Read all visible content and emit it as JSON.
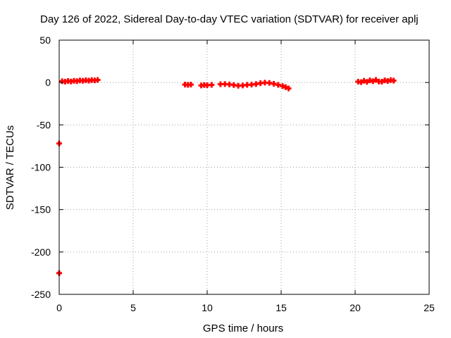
{
  "chart_data": {
    "type": "scatter",
    "title": "Day 126 of 2022, Sidereal Day-to-day VTEC variation (SDTVAR) for receiver aplj",
    "xlabel": "GPS time / hours",
    "ylabel": "SDTVAR / TECUs",
    "xlim": [
      0,
      25
    ],
    "ylim": [
      -250,
      50
    ],
    "xticks": [
      0,
      5,
      10,
      15,
      20,
      25
    ],
    "yticks": [
      50,
      0,
      -50,
      -100,
      -150,
      -200,
      -250
    ],
    "grid": true,
    "marker": "plus",
    "series": [
      {
        "color": "#ff0000",
        "points": [
          [
            0.2,
            1.5
          ],
          [
            0.4,
            1.0
          ],
          [
            0.6,
            1.8
          ],
          [
            0.8,
            1.2
          ],
          [
            1.0,
            2.0
          ],
          [
            1.2,
            1.6
          ],
          [
            1.4,
            2.4
          ],
          [
            1.6,
            2.0
          ],
          [
            1.8,
            2.6
          ],
          [
            2.0,
            2.2
          ],
          [
            2.2,
            2.8
          ],
          [
            2.4,
            2.5
          ],
          [
            2.6,
            3.0
          ],
          [
            8.5,
            -2.5
          ],
          [
            8.7,
            -2.8
          ],
          [
            8.9,
            -2.5
          ],
          [
            9.6,
            -3.5
          ],
          [
            9.8,
            -3.0
          ],
          [
            10.0,
            -3.2
          ],
          [
            10.3,
            -2.8
          ],
          [
            10.9,
            -2.0
          ],
          [
            11.2,
            -1.8
          ],
          [
            11.5,
            -2.2
          ],
          [
            11.8,
            -3.0
          ],
          [
            12.1,
            -3.8
          ],
          [
            12.4,
            -3.5
          ],
          [
            12.7,
            -2.8
          ],
          [
            13.0,
            -2.5
          ],
          [
            13.3,
            -1.8
          ],
          [
            13.6,
            -0.8
          ],
          [
            13.9,
            -0.2
          ],
          [
            14.2,
            -0.5
          ],
          [
            14.5,
            -1.5
          ],
          [
            14.8,
            -2.8
          ],
          [
            15.1,
            -4.2
          ],
          [
            15.3,
            -5.5
          ],
          [
            15.5,
            -7.0
          ],
          [
            20.2,
            1.0
          ],
          [
            20.4,
            0.5
          ],
          [
            20.6,
            2.0
          ],
          [
            20.8,
            0.8
          ],
          [
            21.0,
            2.5
          ],
          [
            21.2,
            1.5
          ],
          [
            21.4,
            3.0
          ],
          [
            21.6,
            1.2
          ],
          [
            21.8,
            1.0
          ],
          [
            22.0,
            2.5
          ],
          [
            22.2,
            1.8
          ],
          [
            22.4,
            2.8
          ],
          [
            22.6,
            2.2
          ],
          [
            0.0,
            -72.0
          ],
          [
            0.0,
            -225.0
          ]
        ]
      }
    ]
  }
}
